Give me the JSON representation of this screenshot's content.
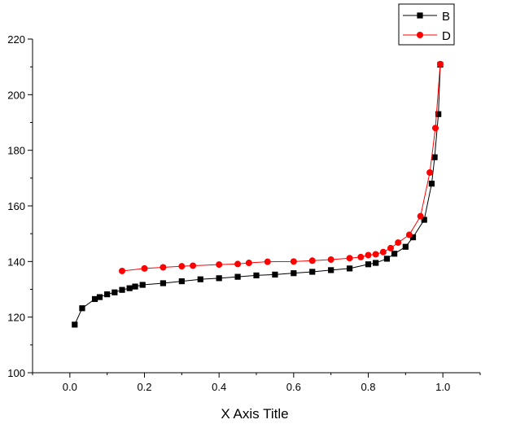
{
  "chart_data": {
    "type": "line",
    "title": "",
    "xlabel": "X Axis Title",
    "ylabel": "",
    "xlim": [
      -0.1,
      1.1
    ],
    "ylim": [
      100,
      220
    ],
    "xticks": [
      0.0,
      0.2,
      0.4,
      0.6,
      0.8,
      1.0
    ],
    "xtick_labels": [
      "0.0",
      "0.2",
      "0.4",
      "0.6",
      "0.8",
      "1.0"
    ],
    "yticks": [
      100,
      120,
      140,
      160,
      180,
      200,
      220
    ],
    "ytick_labels": [
      "100",
      "120",
      "140",
      "160",
      "180",
      "200",
      "220"
    ],
    "grid": false,
    "legend_position": "top-right",
    "series": [
      {
        "name": "B",
        "color": "#000000",
        "marker": "square",
        "x": [
          0.013,
          0.033,
          0.067,
          0.08,
          0.1,
          0.12,
          0.14,
          0.16,
          0.175,
          0.195,
          0.25,
          0.3,
          0.35,
          0.4,
          0.45,
          0.5,
          0.55,
          0.6,
          0.65,
          0.7,
          0.75,
          0.8,
          0.82,
          0.85,
          0.87,
          0.9,
          0.92,
          0.95,
          0.97,
          0.978,
          0.988,
          0.993
        ],
        "y": [
          117.3,
          123.2,
          126.5,
          127.2,
          128.2,
          128.9,
          129.8,
          130.4,
          131.0,
          131.6,
          132.2,
          132.9,
          133.6,
          134.0,
          134.5,
          135.0,
          135.3,
          135.8,
          136.3,
          136.9,
          137.5,
          139.0,
          139.5,
          141.0,
          142.8,
          145.3,
          148.7,
          155.0,
          168.0,
          177.5,
          193.0,
          210.8
        ]
      },
      {
        "name": "D",
        "color": "#ff0000",
        "marker": "circle",
        "x": [
          0.14,
          0.2,
          0.25,
          0.3,
          0.33,
          0.4,
          0.45,
          0.48,
          0.53,
          0.6,
          0.65,
          0.7,
          0.75,
          0.78,
          0.8,
          0.82,
          0.84,
          0.86,
          0.88,
          0.91,
          0.94,
          0.965,
          0.98,
          0.993
        ],
        "y": [
          136.6,
          137.5,
          137.9,
          138.3,
          138.5,
          138.9,
          139.1,
          139.5,
          139.9,
          140.0,
          140.3,
          140.7,
          141.2,
          141.6,
          142.3,
          142.6,
          143.4,
          144.8,
          146.8,
          149.6,
          156.3,
          172.0,
          188.0,
          211.0
        ]
      }
    ]
  }
}
